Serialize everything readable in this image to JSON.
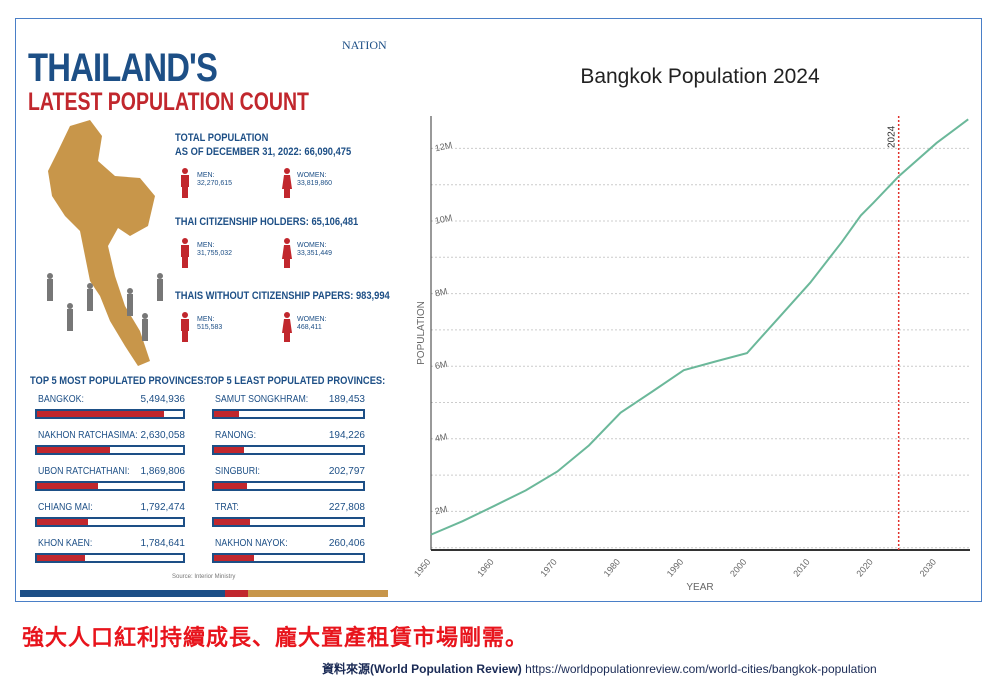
{
  "infographic": {
    "title1": "THAILAND'S",
    "title2": "LATEST POPULATION COUNT",
    "logo": "NATION",
    "groups": [
      {
        "heading": "TOTAL POPULATION",
        "heading2": "AS OF DECEMBER 31, 2022: 66,090,475",
        "men_label": "MEN:",
        "men": "32,270,615",
        "women_label": "WOMEN:",
        "women": "33,819,860"
      },
      {
        "heading": "THAI CITIZENSHIP HOLDERS: 65,106,481",
        "men_label": "MEN:",
        "men": "31,755,032",
        "women_label": "WOMEN:",
        "women": "33,351,449"
      },
      {
        "heading": "THAIS WITHOUT CITIZENSHIP PAPERS: 983,994",
        "men_label": "MEN:",
        "men": "515,583",
        "women_label": "WOMEN:",
        "women": "468,411"
      }
    ],
    "most_heading": "TOP 5 MOST POPULATED PROVINCES:",
    "least_heading": "TOP 5 LEAST POPULATED PROVINCES:",
    "most": [
      {
        "name": "BANGKOK:",
        "value": "5,494,936",
        "fill": 0.87
      },
      {
        "name": "NAKHON RATCHASIMA:",
        "value": "2,630,058",
        "fill": 0.5
      },
      {
        "name": "UBON RATCHATHANI:",
        "value": "1,869,806",
        "fill": 0.42
      },
      {
        "name": "CHIANG MAI:",
        "value": "1,792,474",
        "fill": 0.35
      },
      {
        "name": "KHON KAEN:",
        "value": "1,784,641",
        "fill": 0.33
      }
    ],
    "least": [
      {
        "name": "SAMUT SONGKHRAM:",
        "value": "189,453",
        "fill": 0.17
      },
      {
        "name": "RANONG:",
        "value": "194,226",
        "fill": 0.2
      },
      {
        "name": "SINGBURI:",
        "value": "202,797",
        "fill": 0.22
      },
      {
        "name": "TRAT:",
        "value": "227,808",
        "fill": 0.24
      },
      {
        "name": "NAKHON NAYOK:",
        "value": "260,406",
        "fill": 0.27
      }
    ],
    "source": "Source: Interior Ministry"
  },
  "chart_data": {
    "type": "line",
    "title": "Bangkok Population 2024",
    "xlabel": "YEAR",
    "ylabel": "POPULATION",
    "xlim": [
      1950,
      2035
    ],
    "ylim": [
      1000000,
      12900000
    ],
    "xticks": [
      1950,
      1960,
      1970,
      1980,
      1990,
      2000,
      2010,
      2020,
      2030
    ],
    "yticks": [
      {
        "v": 2000000,
        "label": "2M"
      },
      {
        "v": 4000000,
        "label": "4M"
      },
      {
        "v": 6000000,
        "label": "6M"
      },
      {
        "v": 8000000,
        "label": "8M"
      },
      {
        "v": 10000000,
        "label": "10M"
      },
      {
        "v": 12000000,
        "label": "12M"
      }
    ],
    "marker": {
      "x": 2024,
      "label": "2024"
    },
    "x": [
      1950,
      1955,
      1960,
      1965,
      1970,
      1975,
      1980,
      1985,
      1990,
      1995,
      2000,
      2005,
      2010,
      2015,
      2018,
      2020,
      2024,
      2030,
      2035
    ],
    "y": [
      1360000,
      1730000,
      2150000,
      2580000,
      3100000,
      3820000,
      4720000,
      5300000,
      5890000,
      6130000,
      6360000,
      7330000,
      8300000,
      9420000,
      10150000,
      10500000,
      11230000,
      12150000,
      12800000
    ],
    "color": "#6bb89a",
    "marker_color": "#e0302a"
  },
  "footer": {
    "headline": "強大人口紅利持續成長、龐大置產租賃市場剛需。",
    "source_label": "資料來源(World Population Review)",
    "source_url": "https://worldpopulationreview.com/world-cities/bangkok-population"
  }
}
